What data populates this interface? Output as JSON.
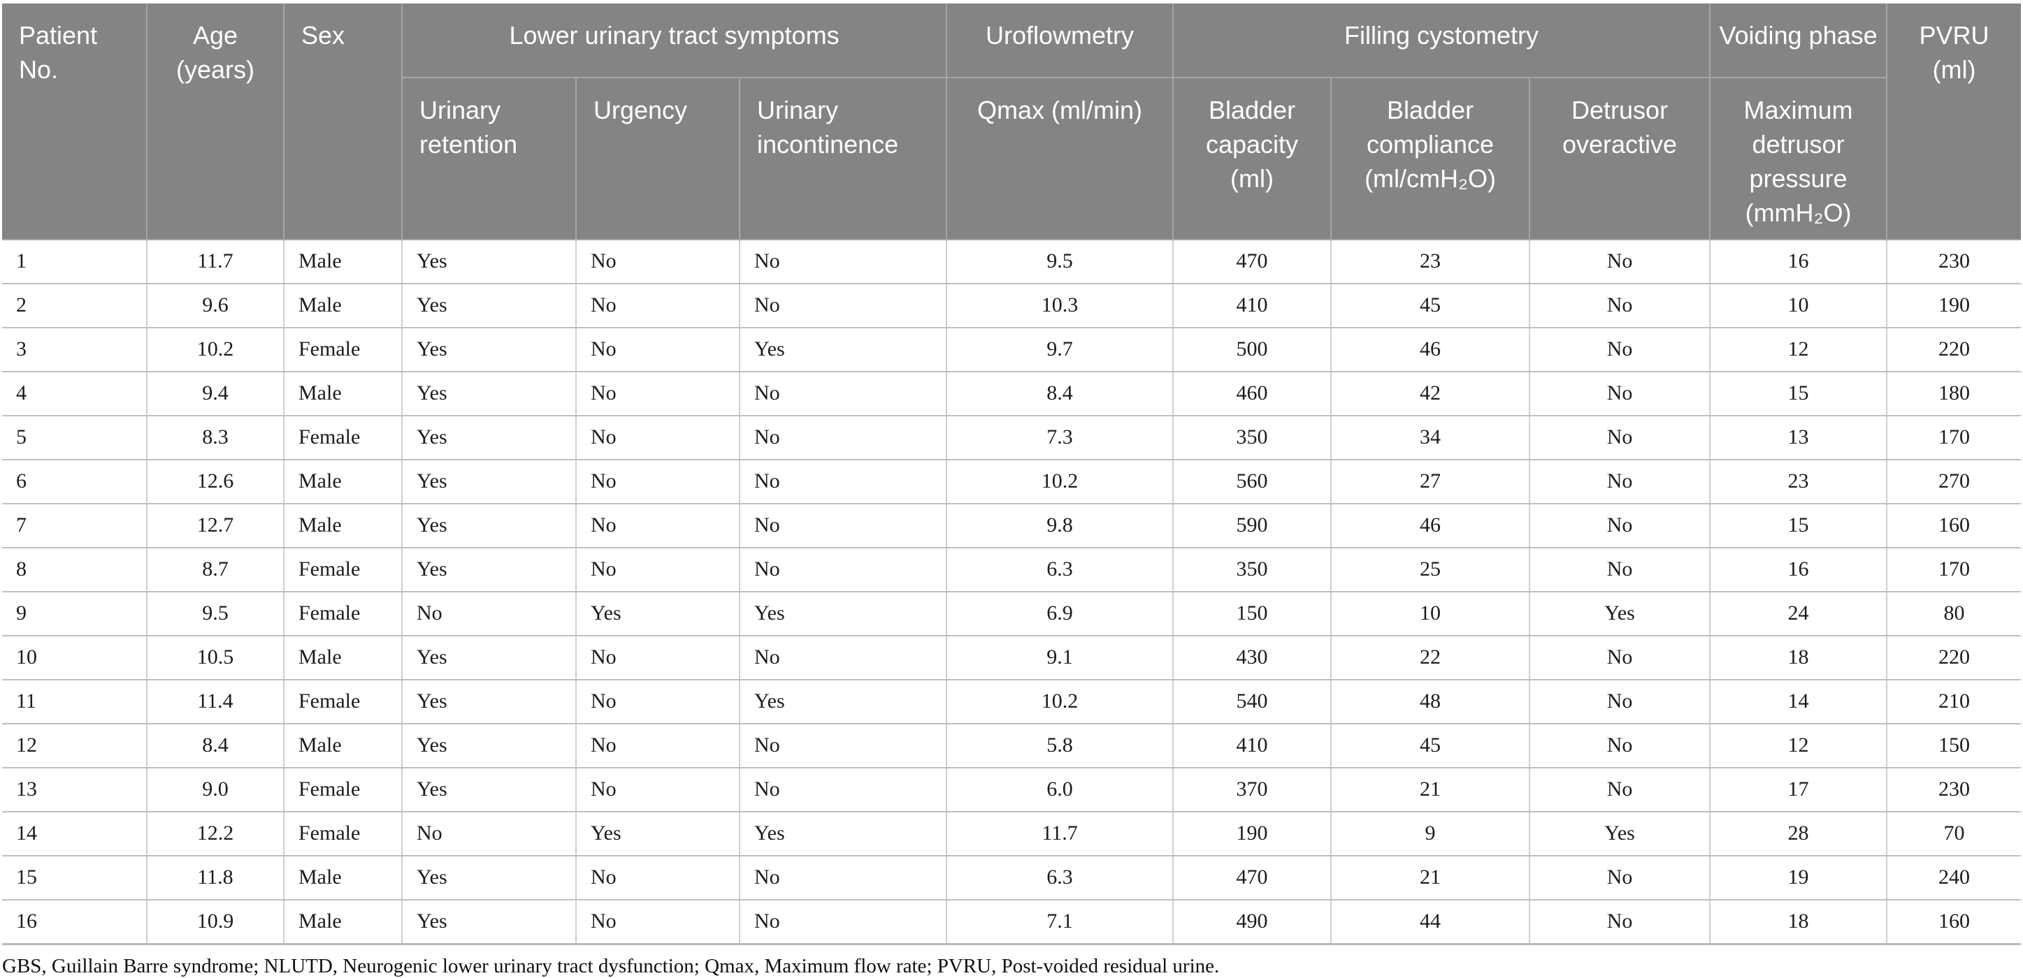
{
  "table": {
    "header": {
      "patient_no": "Patient No.",
      "age": "Age (years)",
      "sex": "Sex",
      "luts_group": "Lower urinary tract symptoms",
      "urinary_retention": "Urinary retention",
      "urgency": "Urgency",
      "urinary_incontinence": "Urinary incontinence",
      "uroflowmetry_group": "Uroflowmetry",
      "qmax": "Qmax (ml/min)",
      "filling_cystometry_group": "Filling cystometry",
      "bladder_capacity": "Bladder capacity (ml)",
      "bladder_compliance": "Bladder compliance (ml/cmH₂O)",
      "detrusor_overactive": "Detrusor overactive",
      "voiding_phase_group": "Voiding phase",
      "max_detrusor_pressure": "Maximum detrusor pressure (mmH₂O)",
      "pvru": "PVRU (ml)"
    },
    "rows": [
      [
        "1",
        "11.7",
        "Male",
        "Yes",
        "No",
        "No",
        "9.5",
        "470",
        "23",
        "No",
        "16",
        "230"
      ],
      [
        "2",
        "9.6",
        "Male",
        "Yes",
        "No",
        "No",
        "10.3",
        "410",
        "45",
        "No",
        "10",
        "190"
      ],
      [
        "3",
        "10.2",
        "Female",
        "Yes",
        "No",
        "Yes",
        "9.7",
        "500",
        "46",
        "No",
        "12",
        "220"
      ],
      [
        "4",
        "9.4",
        "Male",
        "Yes",
        "No",
        "No",
        "8.4",
        "460",
        "42",
        "No",
        "15",
        "180"
      ],
      [
        "5",
        "8.3",
        "Female",
        "Yes",
        "No",
        "No",
        "7.3",
        "350",
        "34",
        "No",
        "13",
        "170"
      ],
      [
        "6",
        "12.6",
        "Male",
        "Yes",
        "No",
        "No",
        "10.2",
        "560",
        "27",
        "No",
        "23",
        "270"
      ],
      [
        "7",
        "12.7",
        "Male",
        "Yes",
        "No",
        "No",
        "9.8",
        "590",
        "46",
        "No",
        "15",
        "160"
      ],
      [
        "8",
        "8.7",
        "Female",
        "Yes",
        "No",
        "No",
        "6.3",
        "350",
        "25",
        "No",
        "16",
        "170"
      ],
      [
        "9",
        "9.5",
        "Female",
        "No",
        "Yes",
        "Yes",
        "6.9",
        "150",
        "10",
        "Yes",
        "24",
        "80"
      ],
      [
        "10",
        "10.5",
        "Male",
        "Yes",
        "No",
        "No",
        "9.1",
        "430",
        "22",
        "No",
        "18",
        "220"
      ],
      [
        "11",
        "11.4",
        "Female",
        "Yes",
        "No",
        "Yes",
        "10.2",
        "540",
        "48",
        "No",
        "14",
        "210"
      ],
      [
        "12",
        "8.4",
        "Male",
        "Yes",
        "No",
        "No",
        "5.8",
        "410",
        "45",
        "No",
        "12",
        "150"
      ],
      [
        "13",
        "9.0",
        "Female",
        "Yes",
        "No",
        "No",
        "6.0",
        "370",
        "21",
        "No",
        "17",
        "230"
      ],
      [
        "14",
        "12.2",
        "Female",
        "No",
        "Yes",
        "Yes",
        "11.7",
        "190",
        "9",
        "Yes",
        "28",
        "70"
      ],
      [
        "15",
        "11.8",
        "Male",
        "Yes",
        "No",
        "No",
        "6.3",
        "470",
        "21",
        "No",
        "19",
        "240"
      ],
      [
        "16",
        "10.9",
        "Male",
        "Yes",
        "No",
        "No",
        "7.1",
        "490",
        "44",
        "No",
        "18",
        "160"
      ]
    ],
    "footnote": "GBS, Guillain Barre syndrome; NLUTD, Neurogenic lower urinary tract dysfunction; Qmax, Maximum flow rate; PVRU, Post-voided residual urine."
  },
  "colors": {
    "header_bg": "#848484",
    "header_text": "#ffffff",
    "header_border": "#a6a6a6",
    "row_border": "#c0c0c0",
    "column_border": "#cfcfcf",
    "body_text": "#1c1c1c"
  },
  "chart_data": {
    "type": "table",
    "columns": [
      "Patient No.",
      "Age (years)",
      "Sex",
      "Urinary retention",
      "Urgency",
      "Urinary incontinence",
      "Qmax (ml/min)",
      "Bladder capacity (ml)",
      "Bladder compliance (ml/cmH₂O)",
      "Detrusor overactive",
      "Maximum detrusor pressure (mmH₂O)",
      "PVRU (ml)"
    ],
    "column_groups": [
      {
        "label": "Lower urinary tract symptoms",
        "columns": [
          "Urinary retention",
          "Urgency",
          "Urinary incontinence"
        ]
      },
      {
        "label": "Uroflowmetry",
        "columns": [
          "Qmax (ml/min)"
        ]
      },
      {
        "label": "Filling cystometry",
        "columns": [
          "Bladder capacity (ml)",
          "Bladder compliance (ml/cmH₂O)",
          "Detrusor overactive"
        ]
      },
      {
        "label": "Voiding phase",
        "columns": [
          "Maximum detrusor pressure (mmH₂O)"
        ]
      }
    ],
    "rows": [
      [
        "1",
        "11.7",
        "Male",
        "Yes",
        "No",
        "No",
        "9.5",
        "470",
        "23",
        "No",
        "16",
        "230"
      ],
      [
        "2",
        "9.6",
        "Male",
        "Yes",
        "No",
        "No",
        "10.3",
        "410",
        "45",
        "No",
        "10",
        "190"
      ],
      [
        "3",
        "10.2",
        "Female",
        "Yes",
        "No",
        "Yes",
        "9.7",
        "500",
        "46",
        "No",
        "12",
        "220"
      ],
      [
        "4",
        "9.4",
        "Male",
        "Yes",
        "No",
        "No",
        "8.4",
        "460",
        "42",
        "No",
        "15",
        "180"
      ],
      [
        "5",
        "8.3",
        "Female",
        "Yes",
        "No",
        "No",
        "7.3",
        "350",
        "34",
        "No",
        "13",
        "170"
      ],
      [
        "6",
        "12.6",
        "Male",
        "Yes",
        "No",
        "No",
        "10.2",
        "560",
        "27",
        "No",
        "23",
        "270"
      ],
      [
        "7",
        "12.7",
        "Male",
        "Yes",
        "No",
        "No",
        "9.8",
        "590",
        "46",
        "No",
        "15",
        "160"
      ],
      [
        "8",
        "8.7",
        "Female",
        "Yes",
        "No",
        "No",
        "6.3",
        "350",
        "25",
        "No",
        "16",
        "170"
      ],
      [
        "9",
        "9.5",
        "Female",
        "No",
        "Yes",
        "Yes",
        "6.9",
        "150",
        "10",
        "Yes",
        "24",
        "80"
      ],
      [
        "10",
        "10.5",
        "Male",
        "Yes",
        "No",
        "No",
        "9.1",
        "430",
        "22",
        "No",
        "18",
        "220"
      ],
      [
        "11",
        "11.4",
        "Female",
        "Yes",
        "No",
        "Yes",
        "10.2",
        "540",
        "48",
        "No",
        "14",
        "210"
      ],
      [
        "12",
        "8.4",
        "Male",
        "Yes",
        "No",
        "No",
        "5.8",
        "410",
        "45",
        "No",
        "12",
        "150"
      ],
      [
        "13",
        "9.0",
        "Female",
        "Yes",
        "No",
        "No",
        "6.0",
        "370",
        "21",
        "No",
        "17",
        "230"
      ],
      [
        "14",
        "12.2",
        "Female",
        "No",
        "Yes",
        "Yes",
        "11.7",
        "190",
        "9",
        "Yes",
        "28",
        "70"
      ],
      [
        "15",
        "11.8",
        "Male",
        "Yes",
        "No",
        "No",
        "6.3",
        "470",
        "21",
        "No",
        "19",
        "240"
      ],
      [
        "16",
        "10.9",
        "Male",
        "Yes",
        "No",
        "No",
        "7.1",
        "490",
        "44",
        "No",
        "18",
        "160"
      ]
    ]
  }
}
